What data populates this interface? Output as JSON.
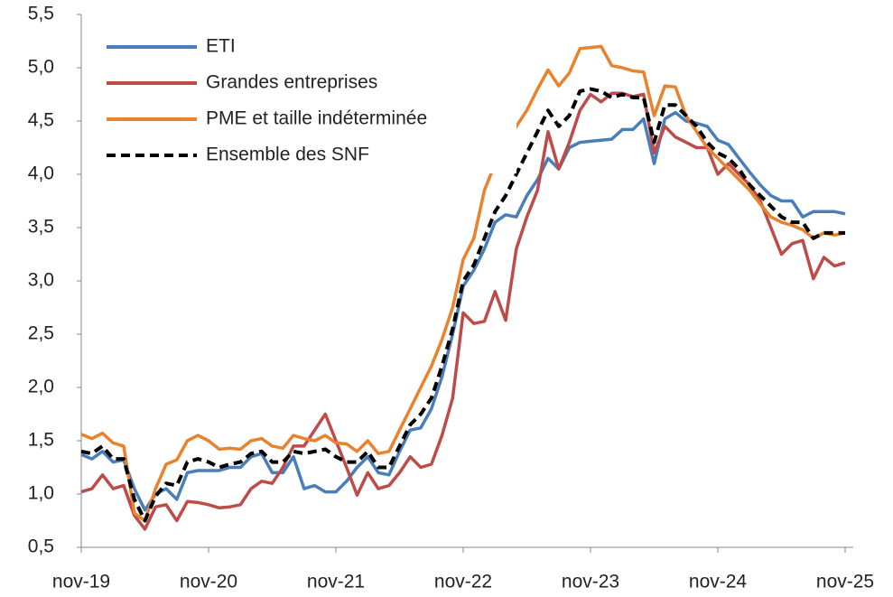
{
  "chart_data": {
    "type": "line",
    "categories": [
      "nov-19",
      null,
      null,
      null,
      null,
      null,
      null,
      null,
      null,
      null,
      null,
      null,
      "nov-20",
      null,
      null,
      null,
      null,
      null,
      null,
      null,
      null,
      null,
      null,
      null,
      "nov-21",
      null,
      null,
      null,
      null,
      null,
      null,
      null,
      null,
      null,
      null,
      null,
      "nov-22",
      null,
      null,
      null,
      null,
      null,
      null,
      null,
      null,
      null,
      null,
      null,
      "nov-23",
      null,
      null,
      null,
      null,
      null,
      null,
      null,
      null,
      null,
      null,
      null,
      "nov-24",
      null,
      null,
      null,
      null,
      null,
      null,
      null,
      null,
      null,
      null,
      null,
      "nov-25"
    ],
    "ylim": [
      0.5,
      5.5
    ],
    "yticks": [
      {
        "value": 0.5,
        "label": "0,5"
      },
      {
        "value": 1.0,
        "label": "1,0"
      },
      {
        "value": 1.5,
        "label": "1,5"
      },
      {
        "value": 2.0,
        "label": "2,0"
      },
      {
        "value": 2.5,
        "label": "2,5"
      },
      {
        "value": 3.0,
        "label": "3,0"
      },
      {
        "value": 3.5,
        "label": "3,5"
      },
      {
        "value": 4.0,
        "label": "4,0"
      },
      {
        "value": 4.5,
        "label": "4,5"
      },
      {
        "value": 5.0,
        "label": "5,0"
      },
      {
        "value": 5.5,
        "label": "5,5"
      }
    ],
    "legend": "top-left",
    "series": [
      {
        "name": "ETI",
        "color": "#4a7ebb",
        "values": [
          1.37,
          1.33,
          1.4,
          1.3,
          1.32,
          1.05,
          0.85,
          1.0,
          1.05,
          0.95,
          1.2,
          1.22,
          1.22,
          1.22,
          1.25,
          1.25,
          1.35,
          1.38,
          1.2,
          1.2,
          1.35,
          1.05,
          1.08,
          1.02,
          1.02,
          1.12,
          1.25,
          1.35,
          1.2,
          1.18,
          1.4,
          1.6,
          1.62,
          1.8,
          2.1,
          2.5,
          2.95,
          3.1,
          3.3,
          3.55,
          3.62,
          3.6,
          3.8,
          3.95,
          4.15,
          4.05,
          4.25,
          4.3,
          4.31,
          4.32,
          4.33,
          4.42,
          4.42,
          4.52,
          4.1,
          4.52,
          4.58,
          4.5,
          4.48,
          4.45,
          4.32,
          4.28,
          4.15,
          4.02,
          3.9,
          3.8,
          3.75,
          3.75,
          3.6,
          3.65,
          3.65,
          3.65,
          3.63
        ]
      },
      {
        "name": "Grandes entreprises",
        "color": "#be4b48",
        "values": [
          1.02,
          1.05,
          1.18,
          1.05,
          1.08,
          0.8,
          0.67,
          0.88,
          0.9,
          0.75,
          0.93,
          0.92,
          0.9,
          0.87,
          0.88,
          0.9,
          1.05,
          1.12,
          1.1,
          1.25,
          1.45,
          1.45,
          1.6,
          1.75,
          1.5,
          1.25,
          0.99,
          1.2,
          1.05,
          1.08,
          1.2,
          1.35,
          1.25,
          1.28,
          1.55,
          1.9,
          2.7,
          2.6,
          2.62,
          2.9,
          2.63,
          3.3,
          3.6,
          3.85,
          4.4,
          4.05,
          4.3,
          4.6,
          4.75,
          4.68,
          4.76,
          4.76,
          4.73,
          4.75,
          4.2,
          4.45,
          4.35,
          4.3,
          4.25,
          4.25,
          4.0,
          4.1,
          4.0,
          3.9,
          3.75,
          3.5,
          3.25,
          3.35,
          3.38,
          3.02,
          3.22,
          3.14,
          3.17
        ]
      },
      {
        "name": "PME et taille indéterminée",
        "color": "#e8822d",
        "values": [
          1.56,
          1.52,
          1.57,
          1.48,
          1.45,
          0.82,
          0.75,
          1.05,
          1.28,
          1.32,
          1.5,
          1.55,
          1.5,
          1.42,
          1.43,
          1.42,
          1.5,
          1.52,
          1.45,
          1.43,
          1.55,
          1.52,
          1.5,
          1.55,
          1.48,
          1.47,
          1.4,
          1.5,
          1.38,
          1.4,
          1.6,
          1.8,
          2.0,
          2.2,
          2.45,
          2.75,
          3.2,
          3.4,
          3.85,
          4.1,
          4.25,
          4.45,
          4.6,
          4.8,
          4.98,
          4.83,
          4.95,
          5.18,
          5.19,
          5.2,
          5.02,
          5.0,
          4.97,
          4.96,
          4.55,
          4.83,
          4.82,
          4.55,
          4.4,
          4.25,
          4.15,
          4.05,
          3.95,
          3.85,
          3.72,
          3.6,
          3.55,
          3.52,
          3.48,
          3.4,
          3.45,
          3.43,
          3.45
        ]
      },
      {
        "name": "Ensemble des SNF",
        "color": "#000000",
        "dashed": true,
        "values": [
          1.4,
          1.38,
          1.45,
          1.33,
          1.33,
          0.95,
          0.75,
          0.98,
          1.1,
          1.08,
          1.3,
          1.33,
          1.3,
          1.25,
          1.28,
          1.3,
          1.38,
          1.4,
          1.3,
          1.3,
          1.4,
          1.38,
          1.4,
          1.42,
          1.35,
          1.3,
          1.3,
          1.4,
          1.25,
          1.25,
          1.45,
          1.65,
          1.75,
          1.9,
          2.2,
          2.55,
          3.0,
          3.15,
          3.4,
          3.65,
          3.8,
          4.0,
          4.2,
          4.4,
          4.6,
          4.45,
          4.55,
          4.78,
          4.8,
          4.78,
          4.72,
          4.75,
          4.72,
          4.72,
          4.3,
          4.65,
          4.65,
          4.55,
          4.45,
          4.3,
          4.2,
          4.15,
          4.05,
          3.9,
          3.8,
          3.7,
          3.6,
          3.55,
          3.55,
          3.4,
          3.45,
          3.45,
          3.45
        ]
      }
    ]
  }
}
